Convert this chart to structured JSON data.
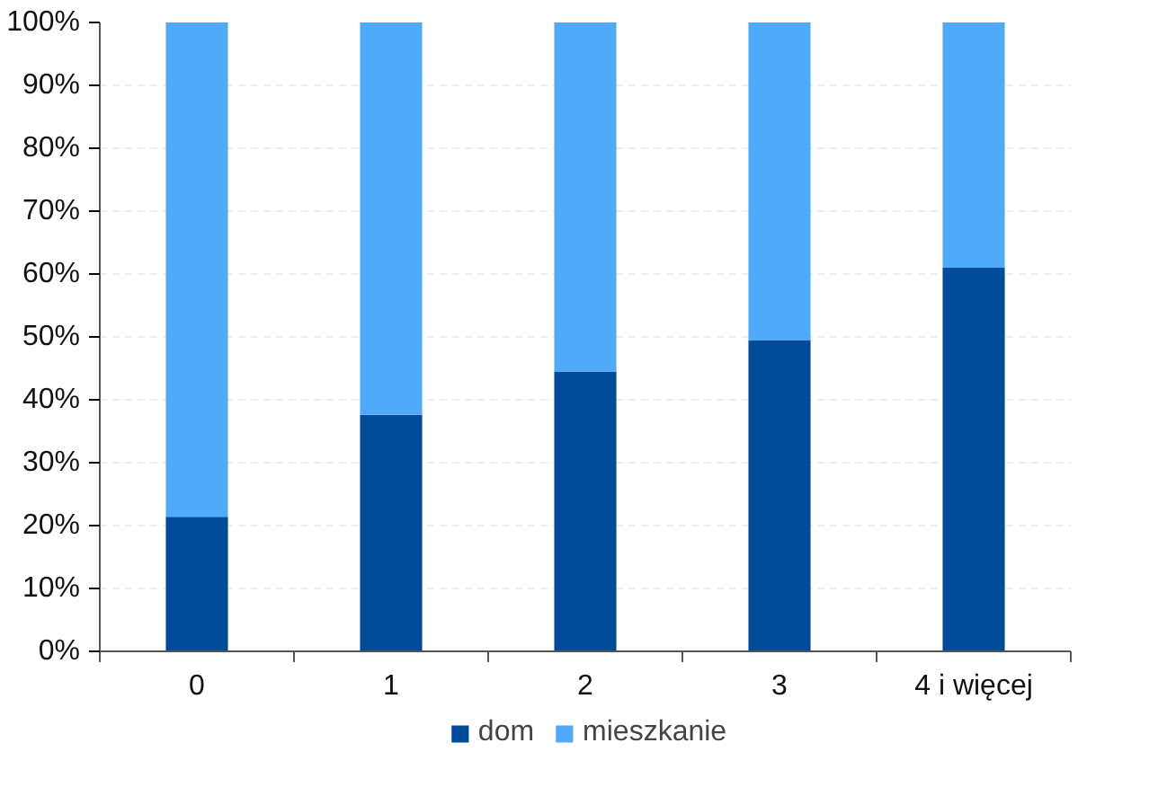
{
  "chart_data": {
    "type": "bar",
    "stacked": true,
    "categories": [
      "0",
      "1",
      "2",
      "3",
      "4 i więcej"
    ],
    "series": [
      {
        "name": "dom",
        "color": "#004c9b",
        "values": [
          21.4,
          37.6,
          44.5,
          49.5,
          61.0
        ]
      },
      {
        "name": "mieszkanie",
        "color": "#50aaf9",
        "values": [
          78.6,
          62.4,
          55.5,
          50.5,
          39.0
        ]
      }
    ],
    "ylim": [
      0,
      100
    ],
    "yticks": [
      {
        "value": 0,
        "label": "0%"
      },
      {
        "value": 10,
        "label": "10%"
      },
      {
        "value": 20,
        "label": "20%"
      },
      {
        "value": 30,
        "label": "30%"
      },
      {
        "value": 40,
        "label": "40%"
      },
      {
        "value": 50,
        "label": "50%"
      },
      {
        "value": 60,
        "label": "60%"
      },
      {
        "value": 70,
        "label": "70%"
      },
      {
        "value": 80,
        "label": "80%"
      },
      {
        "value": 90,
        "label": "90%"
      },
      {
        "value": 100,
        "label": "100%"
      }
    ],
    "grid": "y",
    "legend": "bottom"
  }
}
